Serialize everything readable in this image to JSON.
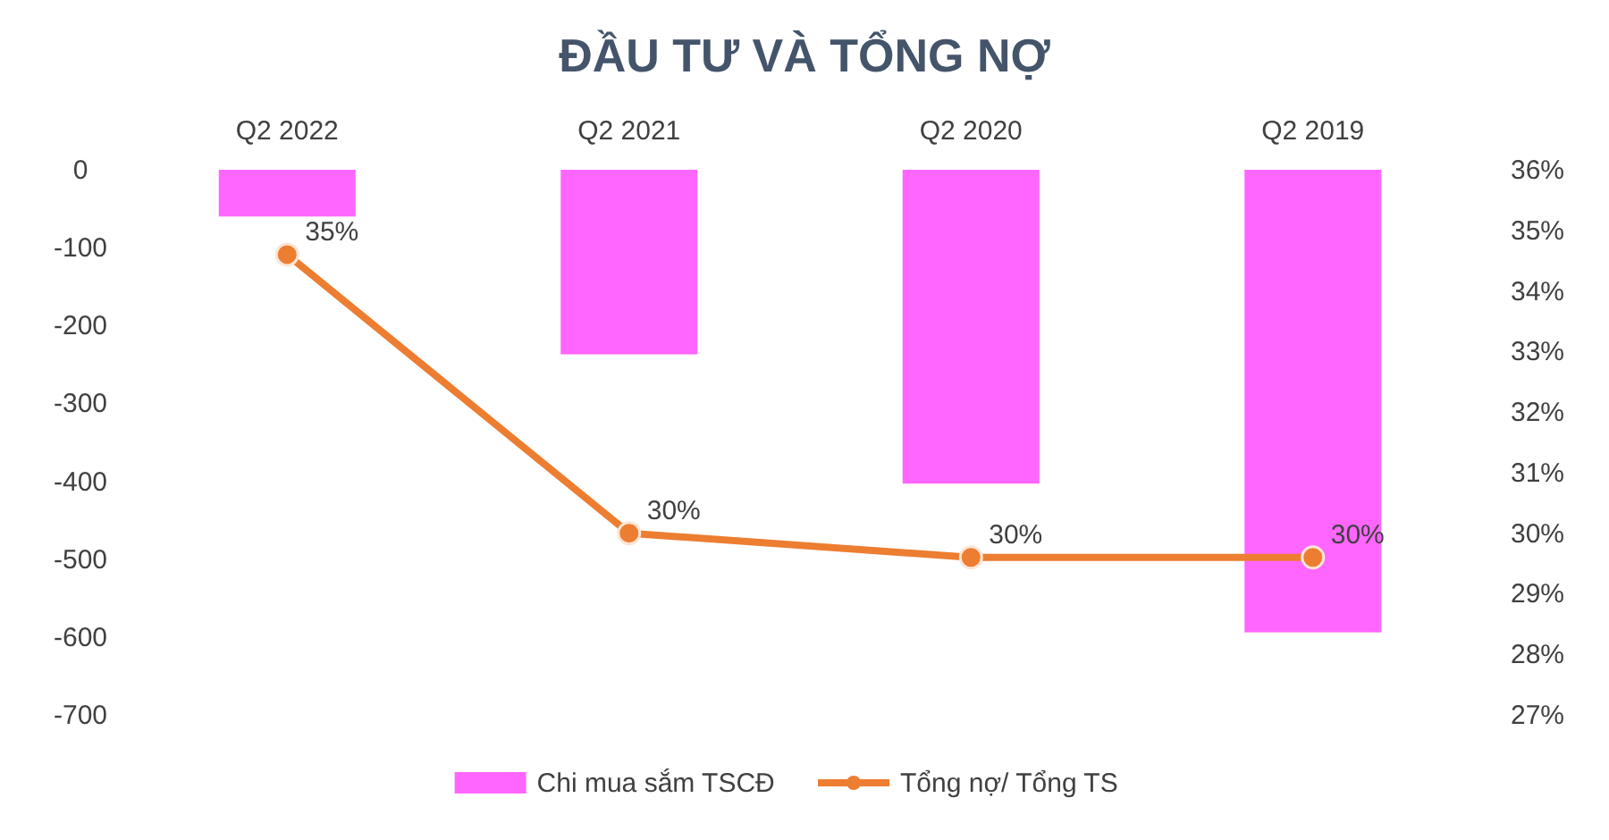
{
  "chart_data": {
    "type": "bar",
    "title": "ĐẦU TƯ VÀ TỔNG NỢ",
    "categories": [
      "Q2 2022",
      "Q2 2021",
      "Q2 2020",
      "Q2 2019"
    ],
    "series": [
      {
        "name": "Chi mua sắm TSCĐ",
        "color": "#ff66ff",
        "values": [
          -60,
          -237,
          -403,
          -594
        ]
      },
      {
        "name": "Tổng nợ/ Tổng TS",
        "type": "line",
        "axis": "y2",
        "color": "#ed7d31",
        "values": [
          34.6,
          30.0,
          29.6,
          29.6
        ],
        "value_labels": [
          "35%",
          "30%",
          "30%",
          "30%"
        ]
      }
    ],
    "ylim": [
      -700,
      0
    ],
    "yticks": [
      -700,
      -600,
      -500,
      -400,
      -300,
      -200,
      -100,
      0
    ],
    "y2lim": [
      27,
      36
    ],
    "y2ticks": [
      {
        "value": 27,
        "label": "27%"
      },
      {
        "value": 28,
        "label": "28%"
      },
      {
        "value": 29,
        "label": "29%"
      },
      {
        "value": 30,
        "label": "30%"
      },
      {
        "value": 31,
        "label": "31%"
      },
      {
        "value": 32,
        "label": "32%"
      },
      {
        "value": 33,
        "label": "33%"
      },
      {
        "value": 34,
        "label": "34%"
      },
      {
        "value": 35,
        "label": "35%"
      },
      {
        "value": 36,
        "label": "36%"
      }
    ],
    "marker": "circle",
    "legend": "bottom"
  }
}
